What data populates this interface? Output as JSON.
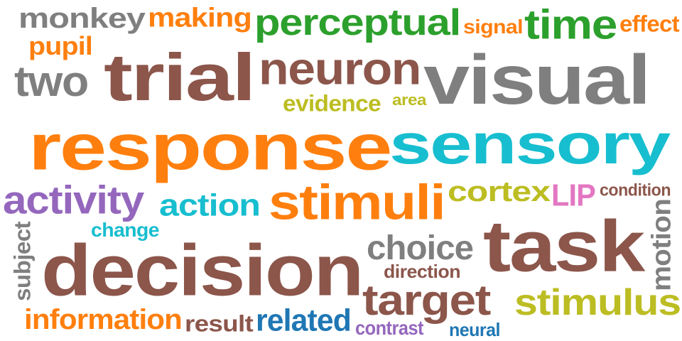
{
  "palette": {
    "gray": "#7f7f7f",
    "brown": "#8c564b",
    "orange": "#ff7f0e",
    "green": "#2ca02c",
    "cyan": "#17becf",
    "olive": "#bcbd22",
    "purple": "#9467bd",
    "pink": "#e377c2",
    "blue": "#1f77b4"
  },
  "words": [
    {
      "text": "monkey",
      "color": "gray"
    },
    {
      "text": "making",
      "color": "orange"
    },
    {
      "text": "perceptual",
      "color": "green"
    },
    {
      "text": "signal",
      "color": "orange"
    },
    {
      "text": "time",
      "color": "green"
    },
    {
      "text": "effect",
      "color": "orange"
    },
    {
      "text": "pupil",
      "color": "orange"
    },
    {
      "text": "two",
      "color": "gray"
    },
    {
      "text": "trial",
      "color": "brown"
    },
    {
      "text": "neuron",
      "color": "brown"
    },
    {
      "text": "visual",
      "color": "gray"
    },
    {
      "text": "evidence",
      "color": "olive"
    },
    {
      "text": "area",
      "color": "olive"
    },
    {
      "text": "response",
      "color": "orange"
    },
    {
      "text": "sensory",
      "color": "cyan"
    },
    {
      "text": "activity",
      "color": "purple"
    },
    {
      "text": "action",
      "color": "cyan"
    },
    {
      "text": "stimuli",
      "color": "orange"
    },
    {
      "text": "cortex",
      "color": "olive"
    },
    {
      "text": "LIP",
      "color": "pink"
    },
    {
      "text": "condition",
      "color": "brown"
    },
    {
      "text": "change",
      "color": "cyan"
    },
    {
      "text": "subject",
      "color": "gray"
    },
    {
      "text": "choice",
      "color": "gray"
    },
    {
      "text": "task",
      "color": "brown"
    },
    {
      "text": "motion",
      "color": "gray"
    },
    {
      "text": "decision",
      "color": "brown"
    },
    {
      "text": "direction",
      "color": "brown"
    },
    {
      "text": "target",
      "color": "brown"
    },
    {
      "text": "stimulus",
      "color": "olive"
    },
    {
      "text": "information",
      "color": "orange"
    },
    {
      "text": "result",
      "color": "brown"
    },
    {
      "text": "related",
      "color": "blue"
    },
    {
      "text": "contrast",
      "color": "purple"
    },
    {
      "text": "neural",
      "color": "blue"
    }
  ]
}
